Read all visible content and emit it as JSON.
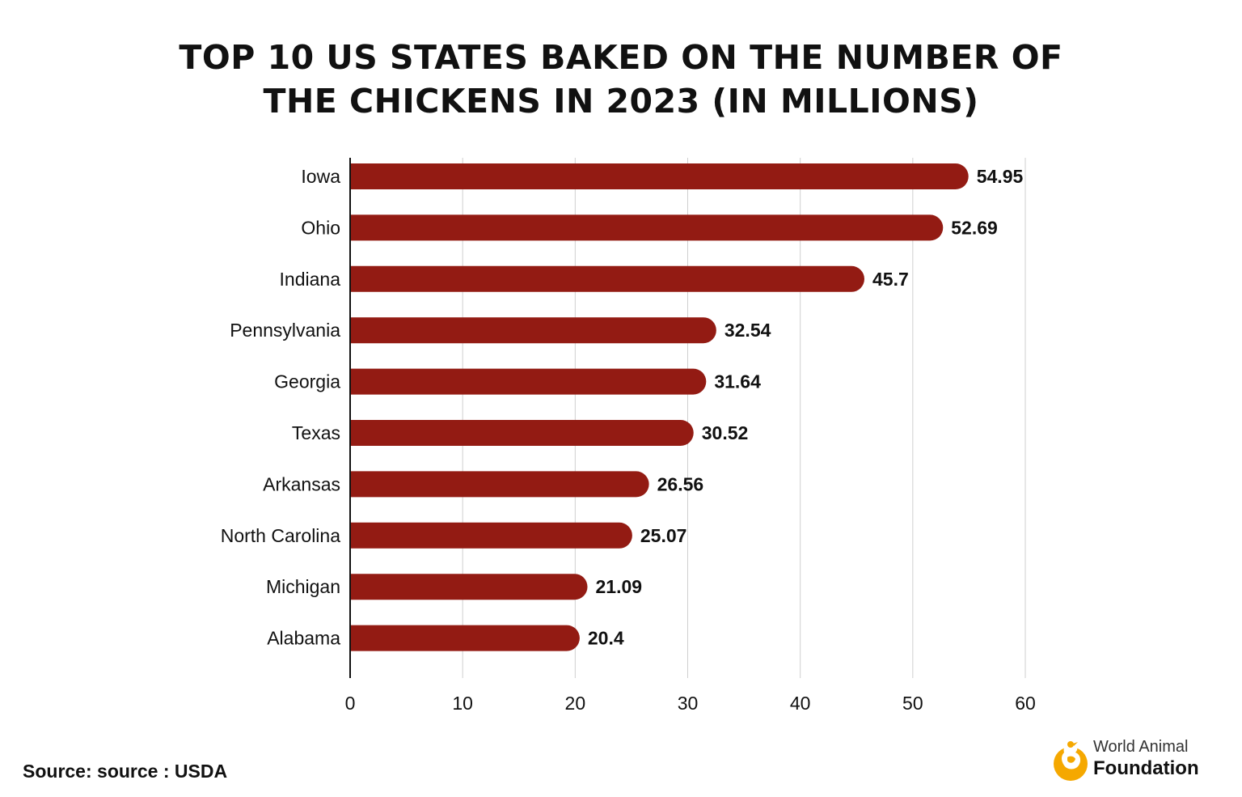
{
  "title_lines": [
    "TOP 10 US STATES BAKED ON THE NUMBER OF",
    "THE CHICKENS IN 2023 (IN MILLIONS)"
  ],
  "source": "Source: source : USDA",
  "brand": {
    "line1": "World Animal",
    "line2": "Foundation",
    "logo_icon": "dog-bird-logo-icon",
    "color": "#f5a800"
  },
  "colors": {
    "bar": "#931b13",
    "grid": "#cfcfcf",
    "axis": "#111111"
  },
  "chart_data": {
    "type": "bar",
    "orientation": "horizontal",
    "title": "TOP 10 US STATES BAKED ON THE NUMBER OF THE CHICKENS IN 2023 (IN MILLIONS)",
    "categories": [
      "Iowa",
      "Ohio",
      "Indiana",
      "Pennsylvania",
      "Georgia",
      "Texas",
      "Arkansas",
      "North Carolina",
      "Michigan",
      "Alabama"
    ],
    "values": [
      54.95,
      52.69,
      45.7,
      32.54,
      31.64,
      30.52,
      26.56,
      25.07,
      21.09,
      20.4
    ],
    "value_labels": [
      "54.95",
      "52.69",
      "45.7",
      "32.54",
      "31.64",
      "30.52",
      "26.56",
      "25.07",
      "21.09",
      "20.4"
    ],
    "xlim": [
      0,
      60
    ],
    "xticks": [
      0,
      10,
      20,
      30,
      40,
      50,
      60
    ],
    "xlabel": "",
    "ylabel": "",
    "grid": "vertical",
    "legend": "none"
  }
}
